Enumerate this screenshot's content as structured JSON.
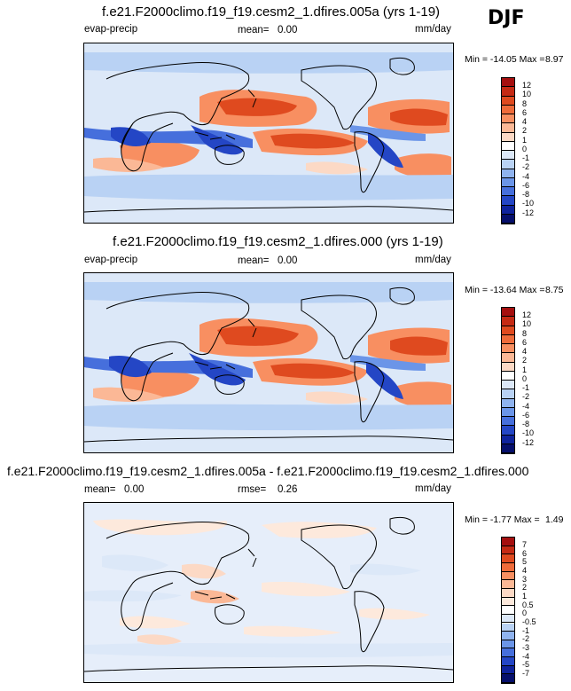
{
  "season": "DJF",
  "panels": [
    {
      "title": "f.e21.F2000climo.f19_f19.cesm2_1.dfires.005a (yrs 1-19)",
      "variable": "evap-precip",
      "stat_label": "mean=",
      "stat_value": "0.00",
      "units": "mm/day",
      "min_label": "Min = -14.05 Max =",
      "max_value": "8.97",
      "levels": [
        "12",
        "10",
        "8",
        "6",
        "4",
        "2",
        "1",
        "0",
        "-1",
        "-2",
        "-4",
        "-6",
        "-8",
        "-10",
        "-12"
      ],
      "colors": [
        "#a50f0f",
        "#c52a14",
        "#df4a1f",
        "#ef6b3a",
        "#f88f61",
        "#fbb896",
        "#fcd9c5",
        "#ffffff",
        "#dce8f8",
        "#b9d2f4",
        "#8fb3ee",
        "#6b95e8",
        "#466fdc",
        "#2446c5",
        "#0f239c",
        "#060f6b"
      ]
    },
    {
      "title": "f.e21.F2000climo.f19_f19.cesm2_1.dfires.000 (yrs 1-19)",
      "variable": "evap-precip",
      "stat_label": "mean=",
      "stat_value": "0.00",
      "units": "mm/day",
      "min_label": "Min = -13.64 Max =",
      "max_value": "8.75",
      "levels": [
        "12",
        "10",
        "8",
        "6",
        "4",
        "2",
        "1",
        "0",
        "-1",
        "-2",
        "-4",
        "-6",
        "-8",
        "-10",
        "-12"
      ],
      "colors": [
        "#a50f0f",
        "#c52a14",
        "#df4a1f",
        "#ef6b3a",
        "#f88f61",
        "#fbb896",
        "#fcd9c5",
        "#ffffff",
        "#dce8f8",
        "#b9d2f4",
        "#8fb3ee",
        "#6b95e8",
        "#466fdc",
        "#2446c5",
        "#0f239c",
        "#060f6b"
      ]
    },
    {
      "title": "f.e21.F2000climo.f19_f19.cesm2_1.dfires.005a - f.e21.F2000climo.f19_f19.cesm2_1.dfires.000",
      "variable": "",
      "stat_label": "mean=",
      "stat_value": "0.00",
      "stat2_label": "rmse=",
      "stat2_value": "0.26",
      "units": "mm/day",
      "min_label": "Min = -1.77 Max =",
      "max_value": "1.49",
      "levels": [
        "7",
        "6",
        "5",
        "4",
        "3",
        "2",
        "1",
        "0.5",
        "0",
        "-0.5",
        "-1",
        "-2",
        "-3",
        "-4",
        "-5",
        "-7"
      ],
      "colors": [
        "#a50f0f",
        "#c52a14",
        "#df4a1f",
        "#ef6b3a",
        "#f88f61",
        "#fbb896",
        "#fcd9c5",
        "#fde9dc",
        "#ffffff",
        "#dce8f8",
        "#b9d2f4",
        "#8fb3ee",
        "#6b95e8",
        "#466fdc",
        "#2446c5",
        "#0f239c",
        "#060f6b"
      ]
    }
  ]
}
